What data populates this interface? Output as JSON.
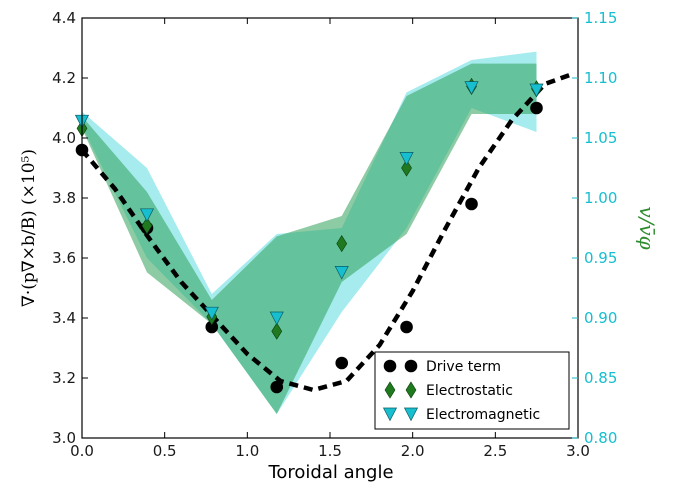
{
  "chart_data": {
    "type": "scatter",
    "xlabel": "Toroidal angle",
    "ylabel_left": "∇·(p∇×b/B) (×10⁵)",
    "ylabel_right": "v/v̄φ",
    "xlim": [
      0.0,
      3.0
    ],
    "ylim_left": [
      3.0,
      4.4
    ],
    "ylim_right": [
      0.8,
      1.15
    ],
    "x_ticks": [
      "0.0",
      "0.5",
      "1.0",
      "1.5",
      "2.0",
      "2.5",
      "3.0"
    ],
    "y_ticks_left": [
      "3.0",
      "3.2",
      "3.4",
      "3.6",
      "3.8",
      "4.0",
      "4.2",
      "4.4"
    ],
    "y_ticks_right": [
      "0.80",
      "0.85",
      "0.90",
      "0.95",
      "1.00",
      "1.05",
      "1.10",
      "1.15"
    ],
    "legend_position": "lower-right",
    "colors": {
      "drive": "#000000",
      "electrostatic": "#1f7a1f",
      "electromagnetic": "#17becf",
      "band_es": "#2ea05a",
      "band_em": "#3ad3d8",
      "right_axis": "#17becf",
      "right_label": "#2e8b2e"
    },
    "series": [
      {
        "name": "Drive term",
        "axis": "left",
        "marker": "circle",
        "x": [
          0.0,
          0.393,
          0.785,
          1.178,
          1.571,
          1.963,
          2.356,
          2.749
        ],
        "y": [
          3.96,
          3.7,
          3.37,
          3.17,
          3.25,
          3.37,
          3.78,
          4.1
        ]
      },
      {
        "name": "Electrostatic",
        "axis": "right",
        "marker": "diamond",
        "x": [
          0.0,
          0.393,
          0.785,
          1.178,
          1.571,
          1.963,
          2.356,
          2.749
        ],
        "y": [
          1.058,
          0.977,
          0.901,
          0.889,
          0.962,
          1.025,
          1.093,
          1.091
        ],
        "band_low": [
          1.058,
          0.938,
          0.895,
          0.82,
          0.93,
          0.97,
          1.07,
          1.07
        ],
        "band_high": [
          1.068,
          1.005,
          0.915,
          0.968,
          0.985,
          1.085,
          1.112,
          1.112
        ]
      },
      {
        "name": "Electromagnetic",
        "axis": "right",
        "marker": "triangle-down",
        "x": [
          0.0,
          0.393,
          0.785,
          1.178,
          1.571,
          1.963,
          2.356,
          2.749
        ],
        "y": [
          1.064,
          0.986,
          0.904,
          0.9,
          0.938,
          1.033,
          1.092,
          1.09
        ],
        "band_low": [
          1.06,
          0.95,
          0.895,
          0.82,
          0.905,
          0.975,
          1.075,
          1.055
        ],
        "band_high": [
          1.072,
          1.025,
          0.92,
          0.97,
          0.975,
          1.088,
          1.115,
          1.122
        ]
      }
    ],
    "fit_curve": {
      "name": "",
      "axis": "left",
      "style": "dashed",
      "x": [
        0.0,
        0.2,
        0.4,
        0.6,
        0.8,
        1.0,
        1.2,
        1.4,
        1.6,
        1.8,
        2.0,
        2.2,
        2.4,
        2.6,
        2.8,
        2.95
      ],
      "y": [
        3.96,
        3.83,
        3.67,
        3.52,
        3.4,
        3.28,
        3.19,
        3.16,
        3.19,
        3.31,
        3.49,
        3.7,
        3.9,
        4.06,
        4.18,
        4.21
      ]
    }
  }
}
